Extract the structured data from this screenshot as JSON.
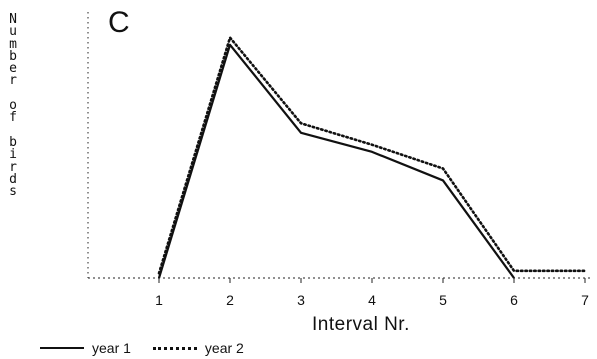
{
  "panel_label": "C",
  "chart_data": {
    "type": "line",
    "x": [
      1,
      2,
      3,
      4,
      5,
      6,
      7
    ],
    "xlabel": "Interval Nr.",
    "ylabel": "Number of birds",
    "xlim": [
      0,
      7
    ],
    "ylim": [
      0,
      10
    ],
    "x_tick_labels": [
      "1",
      "2",
      "3",
      "4",
      "5",
      "6",
      "7"
    ],
    "grid": false,
    "legend_placement": "bottom-left",
    "series": [
      {
        "name": "year 1",
        "style": "solid",
        "points": [
          [
            1,
            0
          ],
          [
            2,
            9.8
          ],
          [
            3,
            6.1
          ],
          [
            4,
            5.3
          ],
          [
            5,
            4.1
          ],
          [
            6,
            0
          ]
        ]
      },
      {
        "name": "year 2",
        "style": "dotted",
        "points": [
          [
            1,
            0.2
          ],
          [
            2,
            10.1
          ],
          [
            3,
            6.5
          ],
          [
            4,
            5.6
          ],
          [
            5,
            4.6
          ],
          [
            6,
            0.3
          ],
          [
            7,
            0.3
          ]
        ]
      }
    ]
  }
}
